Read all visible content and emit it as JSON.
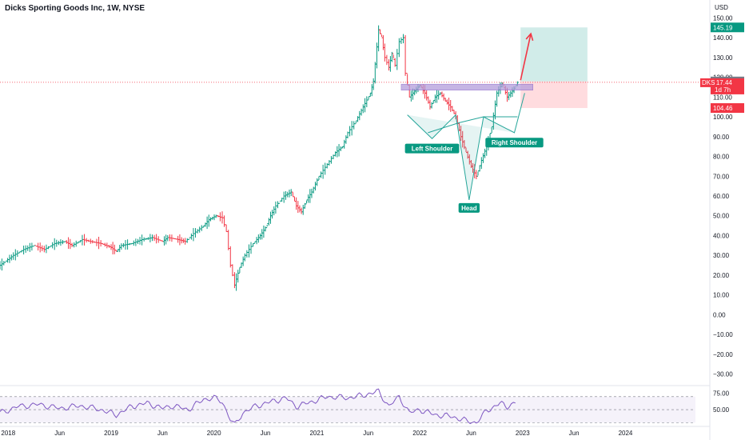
{
  "header": {
    "title": "Dicks Sporting Goods Inc, 1W, NYSE"
  },
  "price_scale": {
    "currency": "USD"
  },
  "chart_data": {
    "type": "line",
    "title": "Dicks Sporting Goods Inc, 1W, NYSE",
    "ylabel": "USD",
    "ylim": [
      -35,
      155
    ],
    "y_ticks": [
      150,
      140,
      130,
      120,
      110,
      100,
      90,
      80,
      70,
      60,
      50,
      40,
      30,
      20,
      10,
      0,
      -10,
      -20,
      -30
    ],
    "y_tick_labels": [
      "150.00",
      "140.00",
      "130.00",
      "120.00",
      "110.00",
      "100.00",
      "90.00",
      "80.00",
      "70.00",
      "60.00",
      "50.00",
      "40.00",
      "30.00",
      "20.00",
      "10.00",
      "0.00",
      "−10.00",
      "−20.00",
      "−30.00"
    ],
    "xlim": [
      2017.92,
      2024.68
    ],
    "x_ticks": [
      {
        "x": 2018.0,
        "label": "2018"
      },
      {
        "x": 2018.5,
        "label": "Jun"
      },
      {
        "x": 2019.0,
        "label": "2019"
      },
      {
        "x": 2019.5,
        "label": "Jun"
      },
      {
        "x": 2020.0,
        "label": "2020"
      },
      {
        "x": 2020.5,
        "label": "Jun"
      },
      {
        "x": 2021.0,
        "label": "2021"
      },
      {
        "x": 2021.5,
        "label": "Jun"
      },
      {
        "x": 2022.0,
        "label": "2022"
      },
      {
        "x": 2022.5,
        "label": "Jun"
      },
      {
        "x": 2023.0,
        "label": "2023"
      },
      {
        "x": 2023.5,
        "label": "Jun"
      },
      {
        "x": 2024.0,
        "label": "2024"
      }
    ],
    "series": [
      {
        "values": [
          [
            2017.92,
            25
          ],
          [
            2018.05,
            30
          ],
          [
            2018.15,
            33
          ],
          [
            2018.25,
            35
          ],
          [
            2018.35,
            33
          ],
          [
            2018.45,
            36
          ],
          [
            2018.55,
            37
          ],
          [
            2018.62,
            35
          ],
          [
            2018.72,
            38
          ],
          [
            2018.8,
            37
          ],
          [
            2018.9,
            36
          ],
          [
            2019.0,
            34
          ],
          [
            2019.05,
            32
          ],
          [
            2019.1,
            35
          ],
          [
            2019.2,
            36
          ],
          [
            2019.3,
            38
          ],
          [
            2019.4,
            39
          ],
          [
            2019.5,
            37
          ],
          [
            2019.55,
            39
          ],
          [
            2019.65,
            38
          ],
          [
            2019.72,
            37
          ],
          [
            2019.8,
            41
          ],
          [
            2019.9,
            45
          ],
          [
            2019.95,
            48
          ],
          [
            2020.02,
            50
          ],
          [
            2020.08,
            49
          ],
          [
            2020.12,
            42
          ],
          [
            2020.16,
            25
          ],
          [
            2020.2,
            15
          ],
          [
            2020.25,
            24
          ],
          [
            2020.3,
            30
          ],
          [
            2020.38,
            36
          ],
          [
            2020.45,
            40
          ],
          [
            2020.5,
            44
          ],
          [
            2020.55,
            50
          ],
          [
            2020.6,
            55
          ],
          [
            2020.68,
            60
          ],
          [
            2020.75,
            62
          ],
          [
            2020.8,
            55
          ],
          [
            2020.85,
            52
          ],
          [
            2020.9,
            58
          ],
          [
            2020.95,
            62
          ],
          [
            2021.02,
            70
          ],
          [
            2021.1,
            76
          ],
          [
            2021.18,
            82
          ],
          [
            2021.25,
            85
          ],
          [
            2021.3,
            92
          ],
          [
            2021.38,
            98
          ],
          [
            2021.45,
            105
          ],
          [
            2021.52,
            112
          ],
          [
            2021.55,
            118
          ],
          [
            2021.6,
            144
          ],
          [
            2021.63,
            140
          ],
          [
            2021.66,
            130
          ],
          [
            2021.7,
            125
          ],
          [
            2021.73,
            132
          ],
          [
            2021.76,
            126
          ],
          [
            2021.8,
            138
          ],
          [
            2021.84,
            140
          ],
          [
            2021.86,
            122
          ],
          [
            2021.9,
            110
          ],
          [
            2021.95,
            113
          ],
          [
            2022.0,
            116
          ],
          [
            2022.05,
            112
          ],
          [
            2022.1,
            105
          ],
          [
            2022.15,
            110
          ],
          [
            2022.2,
            112
          ],
          [
            2022.25,
            108
          ],
          [
            2022.3,
            105
          ],
          [
            2022.35,
            100
          ],
          [
            2022.4,
            90
          ],
          [
            2022.45,
            82
          ],
          [
            2022.5,
            75
          ],
          [
            2022.55,
            70
          ],
          [
            2022.6,
            78
          ],
          [
            2022.65,
            85
          ],
          [
            2022.7,
            95
          ],
          [
            2022.75,
            112
          ],
          [
            2022.8,
            117
          ],
          [
            2022.85,
            110
          ],
          [
            2022.9,
            113
          ],
          [
            2022.95,
            117.44
          ]
        ]
      }
    ],
    "current_price": {
      "symbol": "DKS",
      "value": 117.44,
      "label": "117.44",
      "countdown": "1d 7h"
    },
    "price_labels": [
      {
        "value": 145.19,
        "label": "145.19",
        "color": "#089981"
      },
      {
        "value": 117.89,
        "label": "117.89",
        "color": "#787b86"
      },
      {
        "value": 104.46,
        "label": "104.46",
        "color": "#f23645"
      }
    ],
    "neckline_zone": {
      "x_start": 2021.82,
      "x_end": 2023.1,
      "low": 113.5,
      "high": 116.5,
      "color": "#b39ddb"
    },
    "long_position": {
      "x_start": 2022.98,
      "x_end": 2023.63,
      "entry": 117.89,
      "target": 145.19,
      "stop": 104.46
    },
    "pattern_lines": [
      {
        "x": 2021.88,
        "y": 101
      },
      {
        "x": 2022.12,
        "y": 89
      },
      {
        "x": 2022.35,
        "y": 101
      },
      {
        "x": 2022.48,
        "y": 58
      },
      {
        "x": 2022.62,
        "y": 100
      },
      {
        "x": 2022.92,
        "y": 92
      },
      {
        "x": 2023.02,
        "y": 112
      }
    ],
    "pattern_neck": [
      {
        "x": 2022.08,
        "y": 92
      },
      {
        "x": 2022.38,
        "y": 97
      },
      {
        "x": 2022.62,
        "y": 100
      },
      {
        "x": 2022.95,
        "y": 100
      }
    ],
    "annotations": [
      {
        "text": "Left Shoulder",
        "x": 2022.12,
        "y": 84
      },
      {
        "text": "Head",
        "x": 2022.48,
        "y": 54
      },
      {
        "text": "Right Shoulder",
        "x": 2022.92,
        "y": 87
      }
    ],
    "arrow": {
      "from": {
        "x": 2022.98,
        "y": 118.5
      },
      "to": {
        "x": 2023.08,
        "y": 142
      },
      "color": "#f23645"
    },
    "rsi": {
      "ylim": [
        28,
        82
      ],
      "levels": [
        70,
        50,
        30
      ],
      "tick_labels": [
        {
          "value": 75,
          "label": "75.00"
        },
        {
          "value": 50,
          "label": "50.00"
        }
      ],
      "values": [
        [
          2017.92,
          45
        ],
        [
          2018.1,
          55
        ],
        [
          2018.3,
          58
        ],
        [
          2018.5,
          52
        ],
        [
          2018.7,
          56
        ],
        [
          2018.9,
          50
        ],
        [
          2019.05,
          42
        ],
        [
          2019.2,
          55
        ],
        [
          2019.35,
          60
        ],
        [
          2019.5,
          52
        ],
        [
          2019.6,
          56
        ],
        [
          2019.75,
          50
        ],
        [
          2019.9,
          66
        ],
        [
          2020.0,
          68
        ],
        [
          2020.08,
          62
        ],
        [
          2020.16,
          35
        ],
        [
          2020.2,
          26
        ],
        [
          2020.28,
          45
        ],
        [
          2020.4,
          55
        ],
        [
          2020.55,
          62
        ],
        [
          2020.7,
          68
        ],
        [
          2020.8,
          55
        ],
        [
          2020.95,
          62
        ],
        [
          2021.1,
          70
        ],
        [
          2021.3,
          68
        ],
        [
          2021.45,
          72
        ],
        [
          2021.6,
          78
        ],
        [
          2021.7,
          55
        ],
        [
          2021.8,
          70
        ],
        [
          2021.9,
          45
        ],
        [
          2022.0,
          50
        ],
        [
          2022.15,
          42
        ],
        [
          2022.3,
          40
        ],
        [
          2022.45,
          33
        ],
        [
          2022.55,
          30
        ],
        [
          2022.65,
          48
        ],
        [
          2022.78,
          60
        ],
        [
          2022.85,
          55
        ],
        [
          2022.95,
          62
        ]
      ]
    }
  }
}
